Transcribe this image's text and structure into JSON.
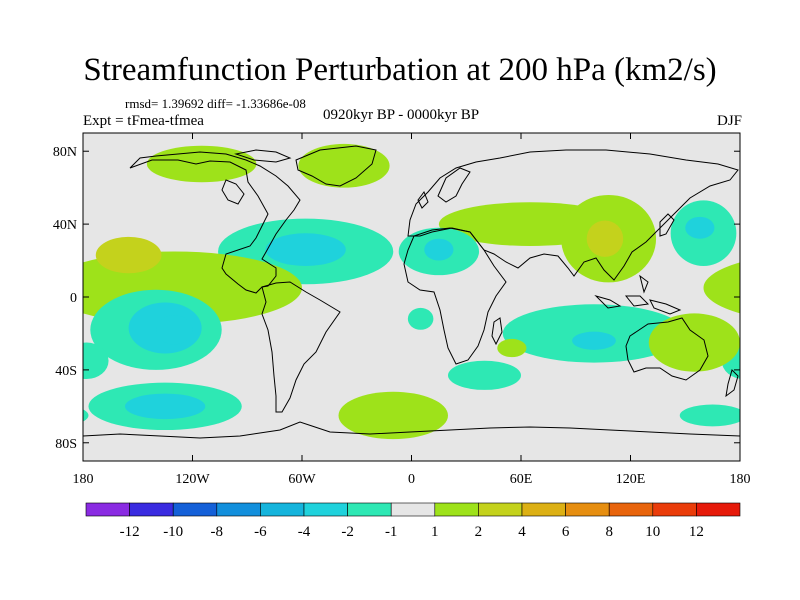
{
  "chart_data": {
    "type": "heatmap",
    "title": "Streamfunction Perturbation at 200 hPa (km2/s)",
    "stats": "rmsd= 1.39692 diff= -1.33686e-08",
    "experiment": "Expt = tFmea-tfmea",
    "period": "0920kyr BP - 0000kyr BP",
    "season": "DJF",
    "lon_range": [
      -180,
      180
    ],
    "lat_range": [
      -90,
      90
    ],
    "x_ticks": [
      {
        "value": -180,
        "label": "180"
      },
      {
        "value": -120,
        "label": "120W"
      },
      {
        "value": -60,
        "label": "60W"
      },
      {
        "value": 0,
        "label": "0"
      },
      {
        "value": 60,
        "label": "60E"
      },
      {
        "value": 120,
        "label": "120E"
      },
      {
        "value": 180,
        "label": "180"
      }
    ],
    "y_ticks": [
      {
        "value": 80,
        "label": "80N"
      },
      {
        "value": 40,
        "label": "40N"
      },
      {
        "value": 0,
        "label": "0"
      },
      {
        "value": -40,
        "label": "40S"
      },
      {
        "value": -80,
        "label": "80S"
      }
    ],
    "colorbar": {
      "colors": [
        "#8a2be2",
        "#3a2be0",
        "#1460d8",
        "#128fdc",
        "#15b4dc",
        "#1fd2dc",
        "#2ee8b4",
        "#e6e6e6",
        "#9ee21a",
        "#c4d21c",
        "#dcb014",
        "#e68e10",
        "#e8640c",
        "#ea3c0a",
        "#e61a0a"
      ],
      "labels": [
        "-12",
        "-10",
        "-8",
        "-6",
        "-4",
        "-2",
        "-1",
        "1",
        "2",
        "4",
        "6",
        "8",
        "10",
        "12"
      ]
    },
    "features": [
      {
        "name": "north-atlantic-greenland",
        "level": 2,
        "lon": -37,
        "lat": 72,
        "rlon": 25,
        "rlat": 12
      },
      {
        "name": "north-pacific-arctic",
        "level": 2,
        "lon": -115,
        "lat": 73,
        "rlon": 30,
        "rlat": 10
      },
      {
        "name": "eurasia-band",
        "level": 2,
        "lon": 65,
        "lat": 40,
        "rlon": 50,
        "rlat": 12
      },
      {
        "name": "tibet-china",
        "level": 2,
        "lon": 108,
        "lat": 32,
        "rlon": 26,
        "rlat": 24
      },
      {
        "name": "tibet-china-core",
        "level": 4,
        "lon": 106,
        "lat": 32,
        "rlon": 10,
        "rlat": 10
      },
      {
        "name": "atlantic-tropical",
        "level": -1,
        "lon": -58,
        "lat": 25,
        "rlon": 48,
        "rlat": 18
      },
      {
        "name": "atlantic-tropical-core",
        "level": -2,
        "lon": -58,
        "lat": 26,
        "rlon": 22,
        "rlat": 9
      },
      {
        "name": "north-africa",
        "level": -1,
        "lon": 15,
        "lat": 25,
        "rlon": 22,
        "rlat": 13
      },
      {
        "name": "north-africa-core",
        "level": -2,
        "lon": 15,
        "lat": 26,
        "rlon": 8,
        "rlat": 6
      },
      {
        "name": "west-pacific",
        "level": -1,
        "lon": 160,
        "lat": 35,
        "rlon": 18,
        "rlat": 18
      },
      {
        "name": "west-pacific-core",
        "level": -2,
        "lon": 158,
        "lat": 38,
        "rlon": 8,
        "rlat": 6
      },
      {
        "name": "gulf-guinea",
        "level": -1,
        "lon": 5,
        "lat": -12,
        "rlon": 7,
        "rlat": 6
      },
      {
        "name": "central-pacific-band",
        "level": 2,
        "lon": -130,
        "lat": 5,
        "rlon": 70,
        "rlat": 20
      },
      {
        "name": "central-pacific-core",
        "level": 4,
        "lon": -155,
        "lat": 23,
        "rlon": 18,
        "rlat": 10
      },
      {
        "name": "south-pacific",
        "level": -1,
        "lon": -140,
        "lat": -18,
        "rlon": 36,
        "rlat": 22
      },
      {
        "name": "south-pacific-mid",
        "level": -2,
        "lon": -135,
        "lat": -17,
        "rlon": 20,
        "rlat": 14
      },
      {
        "name": "south-pacific-core",
        "level": -4,
        "lon": -130,
        "lat": -18,
        "rlon": 10,
        "rlat": 8
      },
      {
        "name": "south-pacific-edge",
        "level": -1,
        "lon": -178,
        "lat": -35,
        "rlon": 12,
        "rlat": 10
      },
      {
        "name": "southern-pacific-high-lat",
        "level": -1,
        "lon": -135,
        "lat": -60,
        "rlon": 42,
        "rlat": 13
      },
      {
        "name": "southern-pacific-high-lat-core",
        "level": -2,
        "lon": -135,
        "lat": -60,
        "rlon": 22,
        "rlat": 7
      },
      {
        "name": "indian-ocean",
        "level": -1,
        "lon": 100,
        "lat": -20,
        "rlon": 50,
        "rlat": 16
      },
      {
        "name": "indian-ocean-core",
        "level": -2,
        "lon": 100,
        "lat": -24,
        "rlon": 12,
        "rlat": 5
      },
      {
        "name": "australia-east",
        "level": 2,
        "lon": 155,
        "lat": -25,
        "rlon": 25,
        "rlat": 16
      },
      {
        "name": "south-atlantic-high-lat",
        "level": 2,
        "lon": -10,
        "lat": -65,
        "rlon": 30,
        "rlat": 13
      },
      {
        "name": "southern-ocean-east",
        "level": -1,
        "lon": 165,
        "lat": -65,
        "rlon": 18,
        "rlat": 6
      },
      {
        "name": "south-africa",
        "level": -1,
        "lon": 40,
        "lat": -43,
        "rlon": 20,
        "rlat": 8
      },
      {
        "name": "madagascar-east",
        "level": 2,
        "lon": 55,
        "lat": -28,
        "rlon": 8,
        "rlat": 5
      }
    ]
  }
}
